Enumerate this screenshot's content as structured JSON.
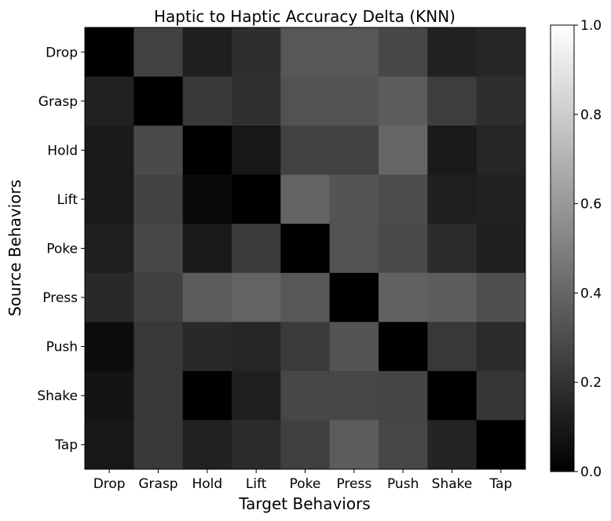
{
  "chart_data": {
    "type": "heatmap",
    "title": "Haptic to Haptic Accuracy Delta (KNN)",
    "xlabel": "Target Behaviors",
    "ylabel": "Source Behaviors",
    "x_categories": [
      "Drop",
      "Grasp",
      "Hold",
      "Lift",
      "Poke",
      "Press",
      "Push",
      "Shake",
      "Tap"
    ],
    "y_categories": [
      "Drop",
      "Grasp",
      "Hold",
      "Lift",
      "Poke",
      "Press",
      "Push",
      "Shake",
      "Tap"
    ],
    "values": [
      [
        0.0,
        0.26,
        0.12,
        0.18,
        0.34,
        0.34,
        0.28,
        0.13,
        0.15
      ],
      [
        0.13,
        0.0,
        0.22,
        0.19,
        0.32,
        0.33,
        0.36,
        0.24,
        0.18
      ],
      [
        0.1,
        0.29,
        0.0,
        0.09,
        0.26,
        0.26,
        0.4,
        0.1,
        0.15
      ],
      [
        0.1,
        0.26,
        0.04,
        0.0,
        0.39,
        0.33,
        0.3,
        0.12,
        0.13
      ],
      [
        0.12,
        0.28,
        0.1,
        0.23,
        0.0,
        0.32,
        0.29,
        0.17,
        0.12
      ],
      [
        0.16,
        0.25,
        0.36,
        0.39,
        0.34,
        0.0,
        0.38,
        0.36,
        0.31
      ],
      [
        0.05,
        0.22,
        0.16,
        0.15,
        0.23,
        0.33,
        0.0,
        0.22,
        0.17
      ],
      [
        0.08,
        0.22,
        0.0,
        0.12,
        0.28,
        0.28,
        0.27,
        0.0,
        0.21
      ],
      [
        0.09,
        0.22,
        0.13,
        0.17,
        0.25,
        0.36,
        0.28,
        0.14,
        0.0
      ]
    ],
    "colormap": "gray",
    "vmin": 0.0,
    "vmax": 1.0,
    "colorbar_ticks": [
      "0.0",
      "0.2",
      "0.4",
      "0.6",
      "0.8",
      "1.0"
    ],
    "grid": false
  }
}
